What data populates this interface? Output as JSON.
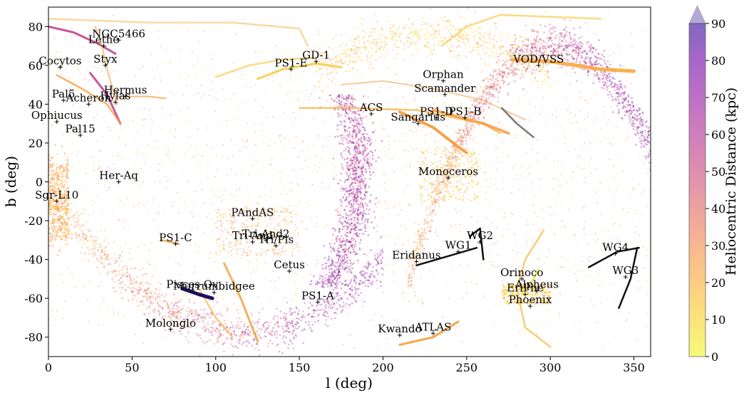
{
  "chart_data": {
    "type": "scatter",
    "xlabel": "l (deg)",
    "ylabel": "b (deg)",
    "xlim": [
      0,
      360
    ],
    "ylim": [
      -90,
      90
    ],
    "xticks": [
      0,
      50,
      100,
      150,
      200,
      250,
      300,
      350
    ],
    "yticks": [
      -80,
      -60,
      -40,
      -20,
      0,
      20,
      40,
      60,
      80
    ],
    "colorbar": {
      "label": "Heliocentric Distance (kpc)",
      "range": [
        0,
        90
      ],
      "ticks": [
        0,
        10,
        20,
        30,
        40,
        50,
        60,
        70,
        80,
        90
      ],
      "extend": "max",
      "colormap": "plasma_r"
    },
    "streams": [
      {
        "name": "NGC5466",
        "l": 42,
        "b": 73
      },
      {
        "name": "Lethe",
        "l": 33,
        "b": 70
      },
      {
        "name": "Styx",
        "l": 34,
        "b": 60
      },
      {
        "name": "Cocytos",
        "l": 7,
        "b": 59
      },
      {
        "name": "GD-1",
        "l": 160,
        "b": 62
      },
      {
        "name": "PS1-E",
        "l": 145,
        "b": 58
      },
      {
        "name": "VOD/VSS",
        "l": 293,
        "b": 60
      },
      {
        "name": "Orphan",
        "l": 236,
        "b": 52
      },
      {
        "name": "Scamander",
        "l": 237,
        "b": 45
      },
      {
        "name": "Hermus",
        "l": 46,
        "b": 44
      },
      {
        "name": "Pal5",
        "l": 9,
        "b": 42
      },
      {
        "name": "Acheron",
        "l": 24,
        "b": 40
      },
      {
        "name": "Hylas",
        "l": 40,
        "b": 41
      },
      {
        "name": "ACS",
        "l": 193,
        "b": 35
      },
      {
        "name": "PS1-D",
        "l": 232,
        "b": 33
      },
      {
        "name": "PS1-B",
        "l": 249,
        "b": 33
      },
      {
        "name": "Sangarius",
        "l": 221,
        "b": 30
      },
      {
        "name": "Ophiucus",
        "l": 5,
        "b": 31
      },
      {
        "name": "Pal15",
        "l": 19,
        "b": 24
      },
      {
        "name": "Monoceros",
        "l": 239,
        "b": 2
      },
      {
        "name": "Her-Aq",
        "l": 42,
        "b": 0
      },
      {
        "name": "Sgr-L10",
        "l": 5,
        "b": -10
      },
      {
        "name": "PAndAS",
        "l": 122,
        "b": -19
      },
      {
        "name": "Tri-And2",
        "l": 130,
        "b": -30
      },
      {
        "name": "Tri-And",
        "l": 122,
        "b": -31
      },
      {
        "name": "Tri/Pis",
        "l": 136,
        "b": -33
      },
      {
        "name": "PS1-C",
        "l": 76,
        "b": -32
      },
      {
        "name": "Eridanus",
        "l": 220,
        "b": -41
      },
      {
        "name": "WG2",
        "l": 258,
        "b": -31
      },
      {
        "name": "WG1",
        "l": 245,
        "b": -36
      },
      {
        "name": "WG4",
        "l": 339,
        "b": -37
      },
      {
        "name": "WG3",
        "l": 345,
        "b": -49
      },
      {
        "name": "Cetus",
        "l": 144,
        "b": -46
      },
      {
        "name": "Orinoco",
        "l": 283,
        "b": -50
      },
      {
        "name": "Pisces Ov",
        "l": 86,
        "b": -56
      },
      {
        "name": "Murrumbidgee",
        "l": 99,
        "b": -57
      },
      {
        "name": "PS1-A",
        "l": 161,
        "b": -62
      },
      {
        "name": "Alpheus",
        "l": 292,
        "b": -56
      },
      {
        "name": "EriPhe",
        "l": 285,
        "b": -58
      },
      {
        "name": "Phoenix",
        "l": 288,
        "b": -64
      },
      {
        "name": "Molonglo",
        "l": 73,
        "b": -76
      },
      {
        "name": "Kwando",
        "l": 210,
        "b": -79
      },
      {
        "name": "ATLAS",
        "l": 230,
        "b": -78
      }
    ]
  }
}
